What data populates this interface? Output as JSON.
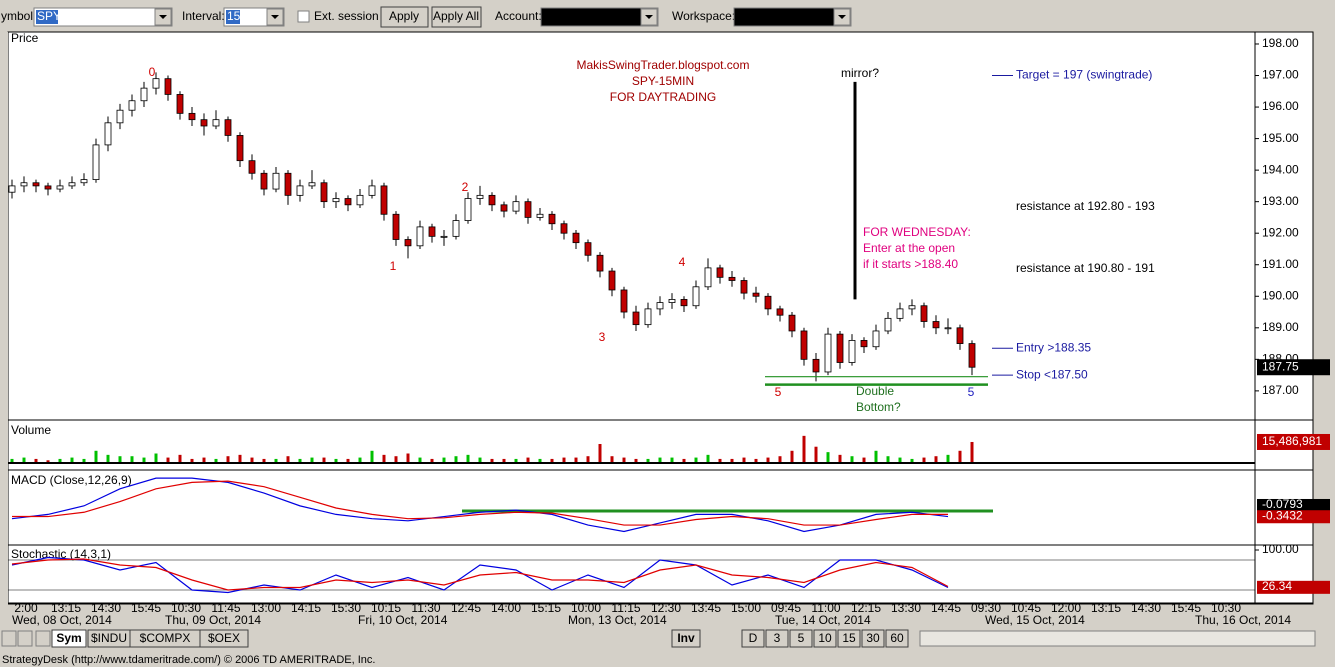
{
  "toolbar": {
    "symbol_label": "ymbol:",
    "symbol": "SPY",
    "interval_label": "Interval:",
    "interval": "15",
    "ext_session": "Ext. session",
    "apply": "Apply",
    "apply_all": "Apply All",
    "account_label": "Account:",
    "workspace_label": "Workspace:"
  },
  "chart_data": [
    {
      "type": "candlestick",
      "title": "Price",
      "ohlc": [
        [
          193.3,
          193.7,
          193.1,
          193.5
        ],
        [
          193.5,
          193.8,
          193.3,
          193.6
        ],
        [
          193.6,
          193.7,
          193.3,
          193.5
        ],
        [
          193.5,
          193.6,
          193.2,
          193.4
        ],
        [
          193.4,
          193.7,
          193.3,
          193.5
        ],
        [
          193.5,
          193.8,
          193.4,
          193.6
        ],
        [
          193.6,
          193.9,
          193.5,
          193.7
        ],
        [
          193.7,
          195.0,
          193.6,
          194.8
        ],
        [
          194.8,
          195.7,
          194.6,
          195.5
        ],
        [
          195.5,
          196.1,
          195.3,
          195.9
        ],
        [
          195.9,
          196.4,
          195.7,
          196.2
        ],
        [
          196.2,
          196.8,
          196.0,
          196.6
        ],
        [
          196.6,
          197.1,
          196.4,
          196.9
        ],
        [
          196.9,
          197.0,
          196.2,
          196.4
        ],
        [
          196.4,
          196.5,
          195.6,
          195.8
        ],
        [
          195.8,
          196.0,
          195.4,
          195.6
        ],
        [
          195.6,
          195.8,
          195.1,
          195.4
        ],
        [
          195.4,
          195.9,
          195.3,
          195.6
        ],
        [
          195.6,
          195.7,
          194.9,
          195.1
        ],
        [
          195.1,
          195.2,
          194.1,
          194.3
        ],
        [
          194.3,
          194.5,
          193.7,
          193.9
        ],
        [
          193.9,
          194.0,
          193.2,
          193.4
        ],
        [
          193.4,
          194.1,
          193.3,
          193.9
        ],
        [
          193.9,
          194.0,
          192.9,
          193.2
        ],
        [
          193.2,
          193.7,
          193.0,
          193.5
        ],
        [
          193.5,
          194.0,
          193.4,
          193.6
        ],
        [
          193.6,
          193.7,
          192.8,
          193.0
        ],
        [
          193.0,
          193.3,
          192.8,
          193.1
        ],
        [
          193.1,
          193.2,
          192.7,
          192.9
        ],
        [
          192.9,
          193.4,
          192.8,
          193.2
        ],
        [
          193.2,
          193.7,
          193.1,
          193.5
        ],
        [
          193.5,
          193.6,
          192.4,
          192.6
        ],
        [
          192.6,
          192.7,
          191.6,
          191.8
        ],
        [
          191.8,
          191.9,
          191.2,
          191.6
        ],
        [
          191.6,
          192.4,
          191.5,
          192.2
        ],
        [
          192.2,
          192.3,
          191.7,
          191.9
        ],
        [
          191.9,
          192.1,
          191.6,
          191.9
        ],
        [
          191.9,
          192.6,
          191.8,
          192.4
        ],
        [
          192.4,
          193.3,
          192.3,
          193.1
        ],
        [
          193.1,
          193.5,
          192.9,
          193.2
        ],
        [
          193.2,
          193.3,
          192.7,
          192.9
        ],
        [
          192.9,
          193.0,
          192.5,
          192.7
        ],
        [
          192.7,
          193.2,
          192.6,
          193.0
        ],
        [
          193.0,
          193.1,
          192.3,
          192.5
        ],
        [
          192.5,
          192.8,
          192.4,
          192.6
        ],
        [
          192.6,
          192.7,
          192.1,
          192.3
        ],
        [
          192.3,
          192.4,
          191.8,
          192.0
        ],
        [
          192.0,
          192.1,
          191.5,
          191.7
        ],
        [
          191.7,
          191.8,
          191.1,
          191.3
        ],
        [
          191.3,
          191.4,
          190.6,
          190.8
        ],
        [
          190.8,
          190.9,
          190.0,
          190.2
        ],
        [
          190.2,
          190.3,
          189.3,
          189.5
        ],
        [
          189.5,
          189.7,
          188.9,
          189.1
        ],
        [
          189.1,
          189.8,
          189.0,
          189.6
        ],
        [
          189.6,
          190.0,
          189.4,
          189.8
        ],
        [
          189.8,
          190.1,
          189.6,
          189.9
        ],
        [
          189.9,
          190.0,
          189.5,
          189.7
        ],
        [
          189.7,
          190.5,
          189.6,
          190.3
        ],
        [
          190.3,
          191.2,
          190.2,
          190.9
        ],
        [
          190.9,
          191.0,
          190.4,
          190.6
        ],
        [
          190.6,
          190.8,
          190.3,
          190.5
        ],
        [
          190.5,
          190.6,
          189.9,
          190.1
        ],
        [
          190.1,
          190.3,
          189.8,
          190.0
        ],
        [
          190.0,
          190.1,
          189.4,
          189.6
        ],
        [
          189.6,
          189.7,
          189.2,
          189.4
        ],
        [
          189.4,
          189.5,
          188.7,
          188.9
        ],
        [
          188.9,
          189.0,
          187.8,
          188.0
        ],
        [
          188.0,
          188.2,
          187.3,
          187.6
        ],
        [
          187.6,
          189.0,
          187.5,
          188.8
        ],
        [
          188.8,
          188.9,
          187.7,
          187.9
        ],
        [
          187.9,
          188.8,
          187.8,
          188.6
        ],
        [
          188.6,
          188.7,
          188.2,
          188.4
        ],
        [
          188.4,
          189.1,
          188.3,
          188.9
        ],
        [
          188.9,
          189.5,
          188.8,
          189.3
        ],
        [
          189.3,
          189.8,
          189.2,
          189.6
        ],
        [
          189.6,
          189.9,
          189.4,
          189.7
        ],
        [
          189.7,
          189.8,
          189.0,
          189.2
        ],
        [
          189.2,
          189.4,
          188.8,
          189.0
        ],
        [
          189.0,
          189.3,
          188.8,
          189.0
        ],
        [
          189.0,
          189.1,
          188.3,
          188.5
        ],
        [
          188.5,
          188.6,
          187.5,
          187.75
        ]
      ],
      "up_color": "#ffffff",
      "down_color": "#c00000",
      "ylim": [
        186.14,
        198.38
      ],
      "yticks": [
        {
          "value": 198,
          "label": "198.00"
        },
        {
          "value": 197,
          "label": "197.00"
        },
        {
          "value": 196,
          "label": "196.00"
        },
        {
          "value": 195,
          "label": "195.00"
        },
        {
          "value": 194,
          "label": "194.00"
        },
        {
          "value": 193,
          "label": "193.00"
        },
        {
          "value": 192,
          "label": "192.00"
        },
        {
          "value": 191,
          "label": "191.00"
        },
        {
          "value": 190,
          "label": "190.00"
        },
        {
          "value": 189,
          "label": "189.00"
        },
        {
          "value": 188,
          "label": "188.00"
        },
        {
          "value": 187,
          "label": "187.00"
        }
      ],
      "last_value": 187.75,
      "wave_labels": [
        "0",
        "1",
        "2",
        "3",
        "4",
        "5",
        "5"
      ],
      "annotations": [
        "MakisSwingTrader.blogspot.com",
        "SPY-15MIN",
        "FOR DAYTRADING",
        "mirror?",
        "FOR WEDNESDAY:",
        "Enter at the open",
        "if it starts >188.40",
        "resistance at 192.80 - 193",
        "resistance at 190.80 - 191",
        "Double",
        "Bottom?"
      ],
      "levels": [
        {
          "label": "Target = 197 (swingtrade)",
          "value": 197
        },
        {
          "label": "Entry >188.35",
          "value": 188.35
        },
        {
          "label": "Stop <187.50",
          "value": 187.5
        }
      ],
      "mirror_line": [
        189.9,
        196.8
      ],
      "support_lines": [
        187.45,
        187.2
      ]
    },
    {
      "type": "bar",
      "title": "Volume",
      "values": [
        3000000.0,
        4000000.0,
        3000000.0,
        2000000.0,
        3000000.0,
        4000000.0,
        3000000.0,
        9000000.0,
        6000000.0,
        5000000.0,
        5000000.0,
        4000000.0,
        7000000.0,
        4000000.0,
        6000000.0,
        3000000.0,
        4000000.0,
        3000000.0,
        5000000.0,
        6000000.0,
        4000000.0,
        3000000.0,
        3000000.0,
        5000000.0,
        3000000.0,
        4000000.0,
        4000000.0,
        3000000.0,
        3000000.0,
        4000000.0,
        9000000.0,
        6000000.0,
        5000000.0,
        7000000.0,
        4000000.0,
        3000000.0,
        4000000.0,
        5000000.0,
        6000000.0,
        4000000.0,
        3000000.0,
        3000000.0,
        3000000.0,
        4000000.0,
        3000000.0,
        3000000.0,
        4000000.0,
        4000000.0,
        5000000.0,
        14000000.0,
        5000000.0,
        4000000.0,
        3000000.0,
        3000000.0,
        4000000.0,
        4000000.0,
        3000000.0,
        4000000.0,
        6000000.0,
        3000000.0,
        3000000.0,
        4000000.0,
        3000000.0,
        4000000.0,
        5000000.0,
        9000000.0,
        20000000.0,
        12000000.0,
        8000000.0,
        6000000.0,
        5000000.0,
        4000000.0,
        9000000.0,
        5000000.0,
        4000000.0,
        3000000.0,
        4000000.0,
        5000000.0,
        6000000.0,
        9000000.0,
        15486981
      ],
      "up_color": "#00c000",
      "down_color": "#c00000",
      "ylim": [
        0,
        28000000
      ],
      "last_value": {
        "value": 15486981,
        "label": "15,486,981"
      }
    },
    {
      "type": "line",
      "title": "MACD (Close,12,26,9)",
      "series": [
        {
          "color": "#0000e0",
          "values": [
            -0.4,
            -0.3,
            -0.1,
            0.3,
            0.55,
            0.55,
            0.45,
            0.2,
            -0.1,
            -0.3,
            -0.4,
            -0.45,
            -0.35,
            -0.25,
            -0.2,
            -0.3,
            -0.55,
            -0.7,
            -0.5,
            -0.3,
            -0.3,
            -0.45,
            -0.7,
            -0.55,
            -0.3,
            -0.25,
            -0.35
          ]
        },
        {
          "color": "#e00000",
          "values": [
            -0.35,
            -0.35,
            -0.25,
            0.0,
            0.3,
            0.45,
            0.48,
            0.35,
            0.1,
            -0.15,
            -0.3,
            -0.4,
            -0.38,
            -0.3,
            -0.25,
            -0.27,
            -0.4,
            -0.55,
            -0.55,
            -0.42,
            -0.35,
            -0.4,
            -0.55,
            -0.55,
            -0.42,
            -0.3,
            -0.3
          ]
        }
      ],
      "ylim": [
        -0.9,
        0.6
      ],
      "level_line": -0.22,
      "last_values": [
        -0.0793,
        -0.3432
      ]
    },
    {
      "type": "line",
      "title": "Stochastic (14,3,1)",
      "series": [
        {
          "color": "#0000e0",
          "values": [
            70,
            85,
            80,
            60,
            75,
            20,
            15,
            30,
            20,
            50,
            25,
            45,
            20,
            70,
            60,
            20,
            50,
            25,
            80,
            70,
            30,
            50,
            25,
            80,
            80,
            60,
            25
          ]
        },
        {
          "color": "#e00000",
          "values": [
            72,
            80,
            82,
            70,
            65,
            40,
            20,
            25,
            25,
            40,
            35,
            40,
            30,
            50,
            55,
            40,
            40,
            35,
            60,
            70,
            50,
            45,
            35,
            60,
            75,
            65,
            27
          ]
        }
      ],
      "ylim": [
        0,
        100
      ],
      "yticks": [
        {
          "value": 100,
          "label": "100.00"
        }
      ],
      "level_lines": [
        80,
        20
      ],
      "last_values": [
        26.34
      ]
    }
  ],
  "time_axis": {
    "labels": [
      "2:00",
      "13:15",
      "14:30",
      "15:45",
      "10:30",
      "11:45",
      "13:00",
      "14:15",
      "15:30",
      "10:15",
      "11:30",
      "12:45",
      "14:00",
      "15:15",
      "10:00",
      "11:15",
      "12:30",
      "13:45",
      "15:00",
      "09:45",
      "11:00",
      "12:15",
      "13:30",
      "14:45",
      "09:30",
      "10:45",
      "12:00",
      "13:15",
      "14:30",
      "15:45",
      "10:30"
    ],
    "dates": [
      "Wed, 08 Oct, 2014",
      "Thu, 09 Oct, 2014",
      "Fri, 10 Oct, 2014",
      "Mon, 13 Oct, 2014",
      "Tue, 14 Oct, 2014",
      "Wed, 15 Oct, 2014",
      "Thu, 16 Oct, 2014"
    ]
  },
  "bottom_bar": {
    "tabs": [
      "Sym",
      "$INDU",
      "$COMPX",
      "$OEX"
    ],
    "inv": "Inv",
    "intervals": [
      "D",
      "3",
      "5",
      "10",
      "15",
      "30",
      "60"
    ]
  },
  "status": "StrategyDesk (http://www.tdameritrade.com/) © 2006 TD AMERITRADE, Inc."
}
